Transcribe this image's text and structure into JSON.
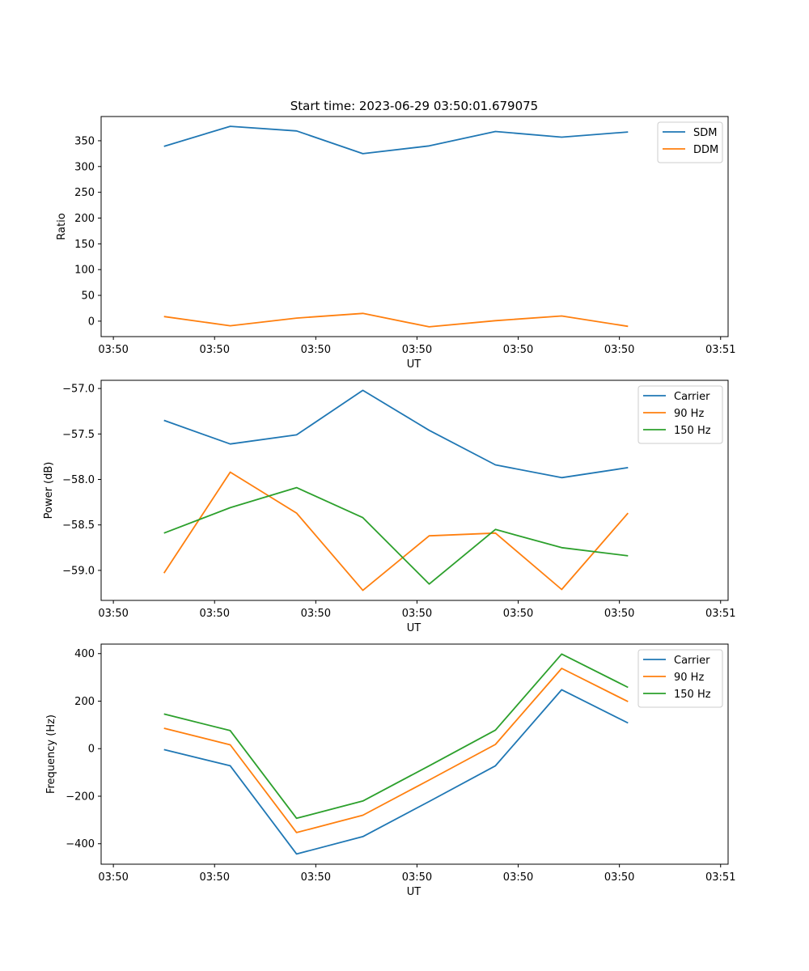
{
  "figure": {
    "title": "Start time: 2023-06-29 03:50:01.679075"
  },
  "chart_data": [
    {
      "type": "line",
      "xlabel": "UT",
      "ylabel": "Ratio",
      "xlim": [
        0,
        6.195
      ],
      "xticks": [
        0.121,
        1.121,
        2.121,
        3.121,
        4.121,
        5.121,
        6.121
      ],
      "xticklabels": [
        "03:50",
        "03:50",
        "03:50",
        "03:50",
        "03:50",
        "03:50",
        "03:51"
      ],
      "ylim": [
        -30,
        397
      ],
      "yticks": [
        0,
        50,
        100,
        150,
        200,
        250,
        300,
        350
      ],
      "yticklabels": [
        "0",
        "50",
        "100",
        "150",
        "200",
        "250",
        "300",
        "350"
      ],
      "legend_loc": "top-right",
      "x": [
        0.621,
        1.276,
        1.931,
        2.586,
        3.241,
        3.896,
        4.551,
        5.206
      ],
      "series": [
        {
          "name": "SDM",
          "color": "#1f77b4",
          "values": [
            339,
            378,
            369,
            325,
            340,
            368,
            357,
            367
          ]
        },
        {
          "name": "DDM",
          "color": "#ff7f0e",
          "values": [
            9,
            -9,
            6,
            15,
            -11,
            1,
            10,
            -10
          ]
        }
      ]
    },
    {
      "type": "line",
      "xlabel": "UT",
      "ylabel": "Power (dB)",
      "xlim": [
        0,
        6.195
      ],
      "xticks": [
        0.121,
        1.121,
        2.121,
        3.121,
        4.121,
        5.121,
        6.121
      ],
      "xticklabels": [
        "03:50",
        "03:50",
        "03:50",
        "03:50",
        "03:50",
        "03:50",
        "03:51"
      ],
      "ylim": [
        -59.33,
        -56.91
      ],
      "yticks": [
        -59.0,
        -58.5,
        -58.0,
        -57.5,
        -57.0
      ],
      "yticklabels": [
        "−59.0",
        "−58.5",
        "−58.0",
        "−57.5",
        "−57.0"
      ],
      "legend_loc": "top-right",
      "x": [
        0.621,
        1.276,
        1.931,
        2.586,
        3.241,
        3.896,
        4.551,
        5.206
      ],
      "series": [
        {
          "name": "Carrier",
          "color": "#1f77b4",
          "values": [
            -57.35,
            -57.61,
            -57.51,
            -57.02,
            -57.46,
            -57.84,
            -57.98,
            -57.87
          ]
        },
        {
          "name": "90 Hz",
          "color": "#ff7f0e",
          "values": [
            -59.03,
            -57.92,
            -58.37,
            -59.22,
            -58.62,
            -58.59,
            -59.21,
            -58.37
          ]
        },
        {
          "name": "150 Hz",
          "color": "#2ca02c",
          "values": [
            -58.59,
            -58.31,
            -58.09,
            -58.42,
            -59.15,
            -58.55,
            -58.75,
            -58.84
          ]
        }
      ]
    },
    {
      "type": "line",
      "xlabel": "UT",
      "ylabel": "Frequency (Hz)",
      "xlim": [
        0,
        6.195
      ],
      "xticks": [
        0.121,
        1.121,
        2.121,
        3.121,
        4.121,
        5.121,
        6.121
      ],
      "xticklabels": [
        "03:50",
        "03:50",
        "03:50",
        "03:50",
        "03:50",
        "03:50",
        "03:51"
      ],
      "ylim": [
        -486,
        440
      ],
      "yticks": [
        -400,
        -200,
        0,
        200,
        400
      ],
      "yticklabels": [
        "−400",
        "−200",
        "0",
        "200",
        "400"
      ],
      "legend_loc": "top-right",
      "x": [
        0.621,
        1.276,
        1.931,
        2.586,
        3.241,
        3.896,
        4.551,
        5.206
      ],
      "series": [
        {
          "name": "Carrier",
          "color": "#1f77b4",
          "values": [
            -4,
            -72,
            -443,
            -370,
            -222,
            -72,
            248,
            108
          ]
        },
        {
          "name": "90 Hz",
          "color": "#ff7f0e",
          "values": [
            86,
            16,
            -353,
            -280,
            -132,
            18,
            338,
            198
          ]
        },
        {
          "name": "150 Hz",
          "color": "#2ca02c",
          "values": [
            146,
            76,
            -293,
            -220,
            -72,
            78,
            398,
            258
          ]
        }
      ]
    }
  ]
}
